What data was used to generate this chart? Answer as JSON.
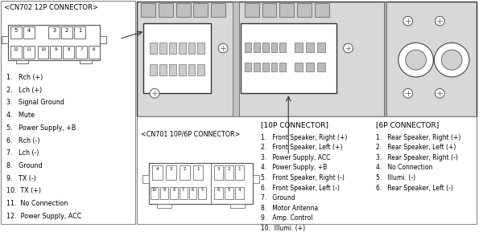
{
  "cn702_title": "<CN702 12P CONNECTOR>",
  "cn702_pinout": [
    "1.   Rch (+)",
    "2.   Lch (+)",
    "3.   Signal Ground",
    "4.   Mute",
    "5.   Power Supply, +B",
    "6.   Rch (-)",
    "7.   Lch (-)",
    "8.   Ground",
    "9.   TX (-)",
    "10.  TX (+)",
    "11.  No Connection",
    "12.  Power Supply, ACC"
  ],
  "cn701_title": "<CN701 10P/6P CONNECTOR>",
  "p10_title": "[10P CONNECTOR]",
  "p10_pinout": [
    "1.   Front Speaker, Right (+)",
    "2.   Front Speaker, Left (+)",
    "3.   Power Supply, ACC",
    "4.   Power Supply, +B",
    "5.   Front Speaker, Right (-)",
    "6.   Front Speaker, Left (-)",
    "7.   Ground",
    "8.   Motor Antenna",
    "9.   Amp. Control",
    "10.  Illumi. (+)"
  ],
  "p6_title": "[6P CONNECTOR]",
  "p6_pinout": [
    "1.   Rear Speaker, Right (+)",
    "2.   Rear Speaker, Left (+)",
    "3.   Rear Speaker, Right (-)",
    "4.   No Connection",
    "5.   Illumi. (-)",
    "6.   Rear Speaker, Left (-)"
  ],
  "cn702_top_pins": [
    "5",
    "4",
    "",
    "3",
    "2",
    "1"
  ],
  "cn702_bot_pins": [
    "12",
    "11",
    "10",
    "9",
    "8",
    "7",
    "6"
  ]
}
